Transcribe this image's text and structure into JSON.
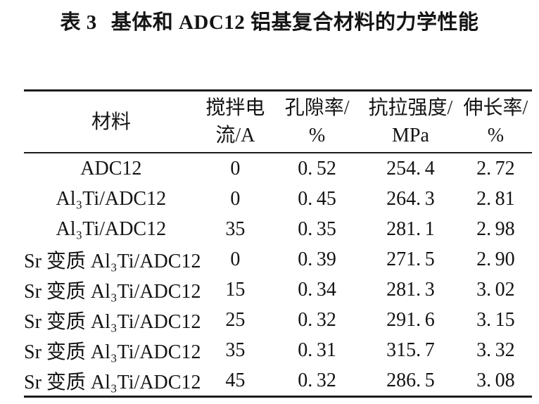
{
  "page": {
    "background": "#ffffff",
    "text_color": "#141414",
    "rule_color": "#1c1c1c"
  },
  "title": {
    "tag": "表 3",
    "text": "基体和 ADC12 铝基复合材料的力学性能",
    "full": "表 3  基体和 ADC12 铝基复合材料的力学性能"
  },
  "table": {
    "columns": [
      {
        "key": "material",
        "label": "材料",
        "line1": "材料",
        "line2": ""
      },
      {
        "key": "current",
        "label": "搅拌电流/A",
        "line1": "搅拌电",
        "line2": "流/A"
      },
      {
        "key": "porosity",
        "label": "孔隙率/%",
        "line1": "孔隙率/",
        "line2": "%"
      },
      {
        "key": "tensile",
        "label": "抗拉强度/MPa",
        "line1": "抗拉强度/",
        "line2": "MPa"
      },
      {
        "key": "elongation",
        "label": "伸长率/%",
        "line1": "伸长率/",
        "line2": "%"
      }
    ],
    "field_order": [
      "material",
      "current",
      "porosity",
      "tensile",
      "elongation"
    ],
    "rows": [
      {
        "material": "ADC12",
        "current": "0",
        "porosity": "0.52",
        "tensile": "254.4",
        "elongation": "2.72"
      },
      {
        "material": "Al₃Ti/ADC12",
        "current": "0",
        "porosity": "0.45",
        "tensile": "264.3",
        "elongation": "2.81"
      },
      {
        "material": "Al₃Ti/ADC12",
        "current": "35",
        "porosity": "0.35",
        "tensile": "281.1",
        "elongation": "2.98"
      },
      {
        "material": "Sr 变质 Al₃Ti/ADC12",
        "current": "0",
        "porosity": "0.39",
        "tensile": "271.5",
        "elongation": "2.90"
      },
      {
        "material": "Sr 变质 Al₃Ti/ADC12",
        "current": "15",
        "porosity": "0.34",
        "tensile": "281.3",
        "elongation": "3.02"
      },
      {
        "material": "Sr 变质 Al₃Ti/ADC12",
        "current": "25",
        "porosity": "0.32",
        "tensile": "291.6",
        "elongation": "3.15"
      },
      {
        "material": "Sr 变质 Al₃Ti/ADC12",
        "current": "35",
        "porosity": "0.31",
        "tensile": "315.7",
        "elongation": "3.32"
      },
      {
        "material": "Sr 变质 Al₃Ti/ADC12",
        "current": "45",
        "porosity": "0.32",
        "tensile": "286.5",
        "elongation": "3.08"
      }
    ]
  }
}
